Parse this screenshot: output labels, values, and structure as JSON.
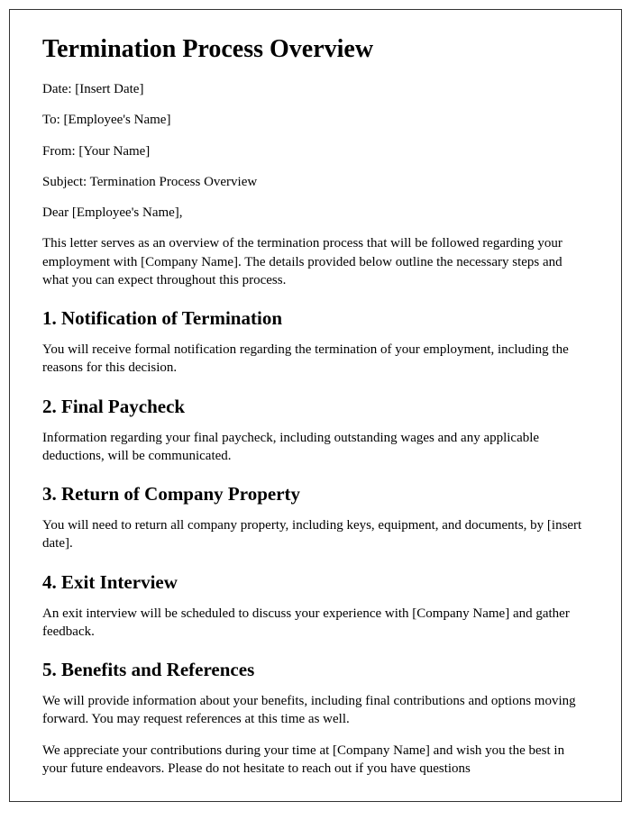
{
  "title": "Termination Process Overview",
  "meta": {
    "date": "Date: [Insert Date]",
    "to": "To: [Employee's Name]",
    "from": "From: [Your Name]",
    "subject": "Subject: Termination Process Overview"
  },
  "salutation": "Dear [Employee's Name],",
  "intro": "This letter serves as an overview of the termination process that will be followed regarding your employment with [Company Name]. The details provided below outline the necessary steps and what you can expect throughout this process.",
  "sections": [
    {
      "heading": "1. Notification of Termination",
      "body": "You will receive formal notification regarding the termination of your employment, including the reasons for this decision."
    },
    {
      "heading": "2. Final Paycheck",
      "body": "Information regarding your final paycheck, including outstanding wages and any applicable deductions, will be communicated."
    },
    {
      "heading": "3. Return of Company Property",
      "body": "You will need to return all company property, including keys, equipment, and documents, by [insert date]."
    },
    {
      "heading": "4. Exit Interview",
      "body": "An exit interview will be scheduled to discuss your experience with [Company Name] and gather feedback."
    },
    {
      "heading": "5. Benefits and References",
      "body": "We will provide information about your benefits, including final contributions and options moving forward. You may request references at this time as well."
    }
  ],
  "closing": "We appreciate your contributions during your time at [Company Name] and wish you the best in your future endeavors. Please do not hesitate to reach out if you have questions"
}
